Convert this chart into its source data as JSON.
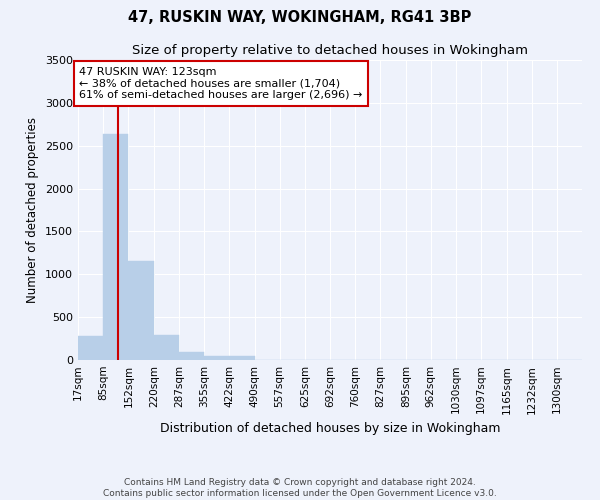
{
  "title": "47, RUSKIN WAY, WOKINGHAM, RG41 3BP",
  "subtitle": "Size of property relative to detached houses in Wokingham",
  "xlabel": "Distribution of detached houses by size in Wokingham",
  "ylabel": "Number of detached properties",
  "footer_line1": "Contains HM Land Registry data © Crown copyright and database right 2024.",
  "footer_line2": "Contains public sector information licensed under the Open Government Licence v3.0.",
  "annotation_line1": "47 RUSKIN WAY: 123sqm",
  "annotation_line2": "← 38% of detached houses are smaller (1,704)",
  "annotation_line3": "61% of semi-detached houses are larger (2,696) →",
  "bar_edges": [
    17,
    85,
    152,
    220,
    287,
    355,
    422,
    490,
    557,
    625,
    692,
    760,
    827,
    895,
    962,
    1030,
    1097,
    1165,
    1232,
    1300,
    1367
  ],
  "bar_heights": [
    280,
    2640,
    1150,
    290,
    90,
    45,
    45,
    5,
    0,
    0,
    0,
    0,
    0,
    0,
    0,
    0,
    0,
    0,
    0,
    0
  ],
  "bar_color": "#b8cfe8",
  "bar_edgecolor": "#b8cfe8",
  "vline_x": 123,
  "vline_color": "#cc0000",
  "ylim": [
    0,
    3500
  ],
  "yticks": [
    0,
    500,
    1000,
    1500,
    2000,
    2500,
    3000,
    3500
  ],
  "bg_color": "#eef2fb",
  "plot_bg_color": "#eef2fb",
  "grid_color": "#ffffff",
  "title_fontsize": 10.5,
  "subtitle_fontsize": 9.5,
  "ylabel_fontsize": 8.5,
  "xlabel_fontsize": 9,
  "tick_fontsize": 7.5,
  "annotation_fontsize": 8,
  "annotation_box_color": "#ffffff",
  "annotation_box_edgecolor": "#cc0000",
  "footer_fontsize": 6.5
}
